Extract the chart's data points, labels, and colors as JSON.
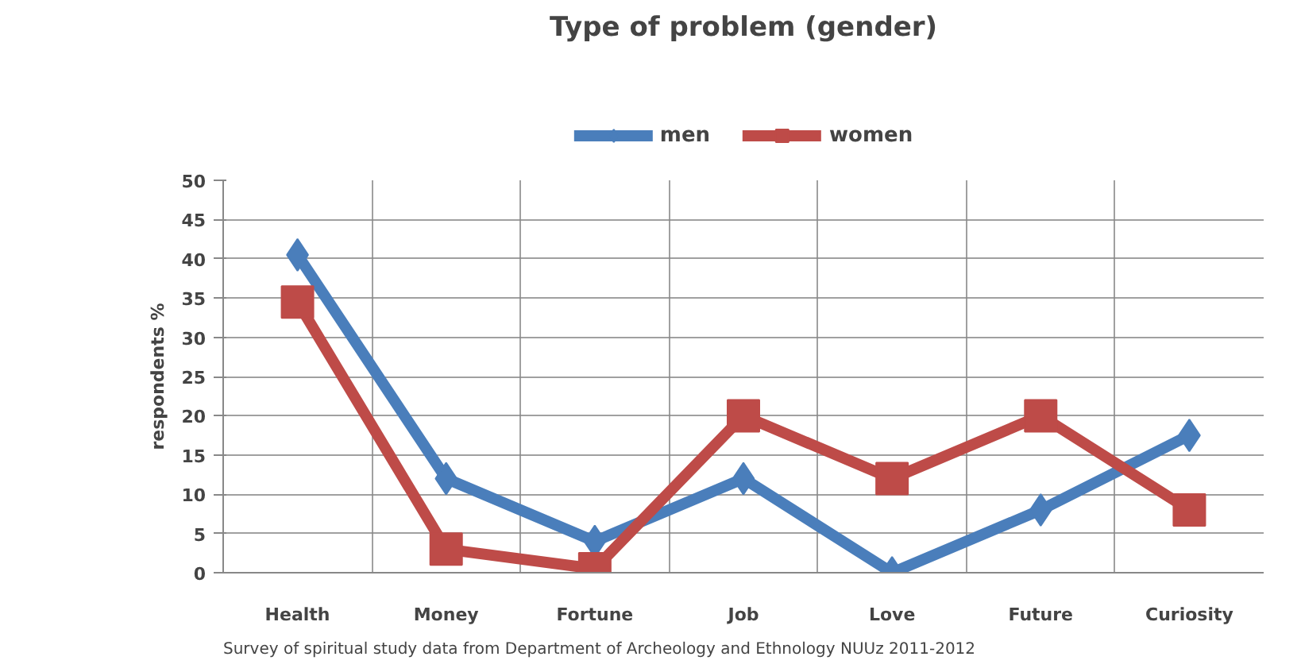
{
  "chart_data": {
    "type": "line",
    "title": "Type of problem (gender)",
    "ylabel": "respondents %",
    "categories": [
      "Health",
      "Money",
      "Fortune",
      "Job",
      "Love",
      "Future",
      "Curiosity"
    ],
    "series": [
      {
        "name": "men",
        "color": "#4a7ebb",
        "marker": "diamond",
        "values": [
          40.5,
          12,
          4,
          12,
          0,
          8,
          17.5
        ]
      },
      {
        "name": "women",
        "color": "#be4b48",
        "marker": "square",
        "values": [
          34.5,
          3,
          0.5,
          20,
          12,
          20,
          8
        ]
      }
    ],
    "ylim": [
      0,
      50
    ],
    "yticks": [
      0,
      5,
      10,
      15,
      20,
      25,
      30,
      35,
      40,
      45,
      50
    ],
    "grid": true,
    "legend": "top",
    "annotations": [
      "Survey of spiritual study data from Department of Archeology and Ethnology NUUz 2011-2012"
    ]
  }
}
